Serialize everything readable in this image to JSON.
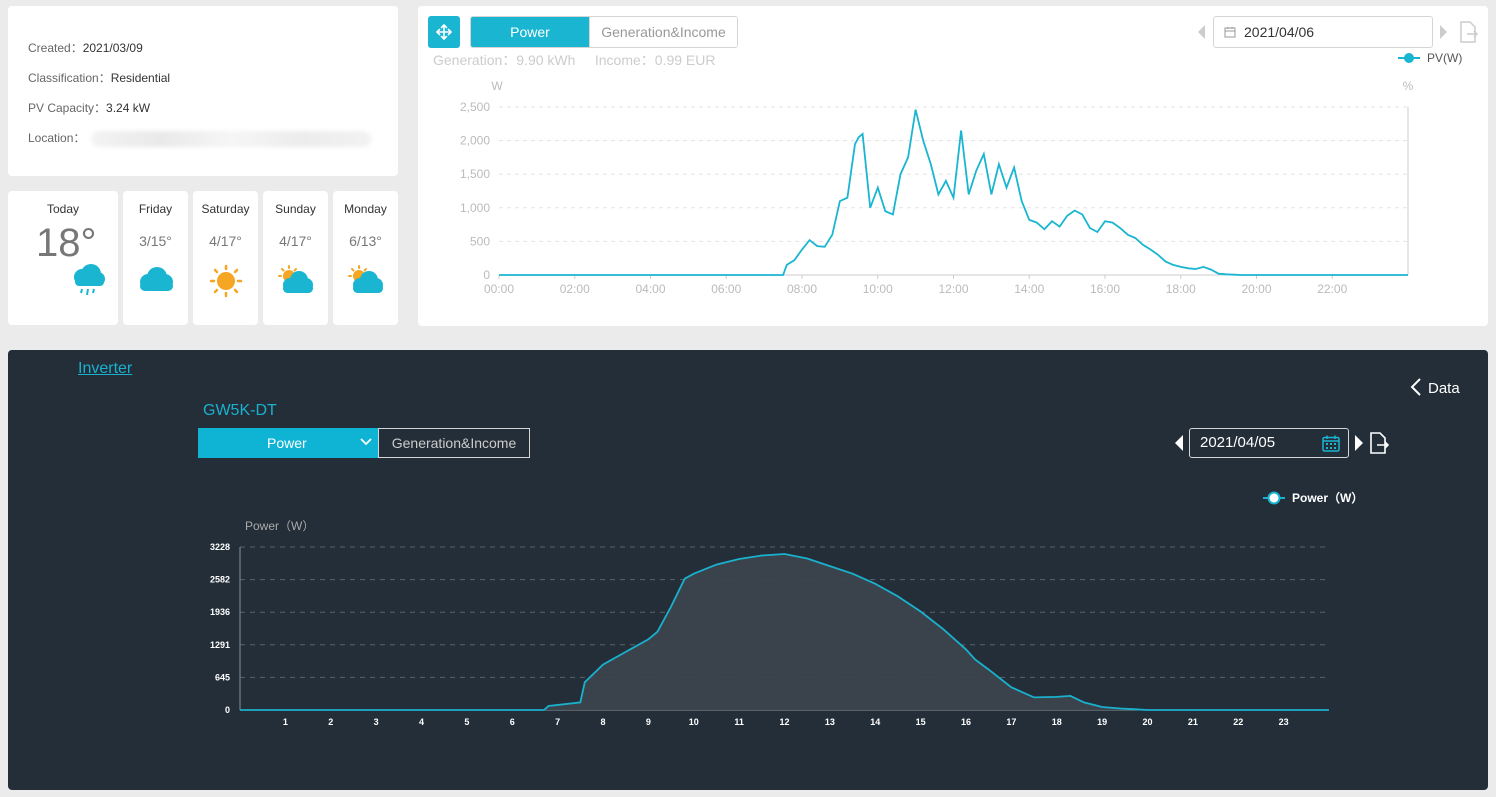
{
  "plant_info": {
    "created_label": "Created：",
    "created_value": "2021/03/09",
    "classification_label": "Classification：",
    "classification_value": "Residential",
    "capacity_label": "PV Capacity：",
    "capacity_value": "3.24 kW",
    "location_label": "Location："
  },
  "weather": [
    {
      "day": "Today",
      "temp": "18°",
      "icon": "rain-cloud-icon"
    },
    {
      "day": "Friday",
      "temp": "3/15°",
      "icon": "cloud-icon"
    },
    {
      "day": "Saturday",
      "temp": "4/17°",
      "icon": "sun-icon"
    },
    {
      "day": "Sunday",
      "temp": "4/17°",
      "icon": "partly-cloudy-icon"
    },
    {
      "day": "Monday",
      "temp": "6/13°",
      "icon": "partly-cloudy-icon"
    }
  ],
  "top_panel": {
    "tab_power": "Power",
    "tab_gen_income": "Generation&Income",
    "generation": "Generation：9.90 kWh",
    "income": "Income：0.99 EUR",
    "date": "2021/04/06",
    "accent": "#19b5d1"
  },
  "bottom_panel": {
    "inverter_link": "Inverter",
    "back_label": "Data",
    "device_name": "GW5K-DT",
    "select_power": "Power",
    "tab_gen_income": "Generation&Income",
    "date": "2021/04/05",
    "background": "#232e38",
    "accent": "#0fb4d4"
  },
  "chart_data": [
    {
      "type": "line",
      "ylabel": "W",
      "y2label": "%",
      "x_ticks": [
        "00:00",
        "02:00",
        "04:00",
        "06:00",
        "08:00",
        "10:00",
        "12:00",
        "14:00",
        "16:00",
        "18:00",
        "20:00",
        "22:00"
      ],
      "y_ticks": [
        "0",
        "500",
        "1,000",
        "1,500",
        "2,000",
        "2,500"
      ],
      "ylim": [
        0,
        2500
      ],
      "xlim": [
        0,
        24
      ],
      "grid": true,
      "legend": "top-right",
      "series": [
        {
          "name": "PV(W)",
          "color": "#19b5d1",
          "x": [
            0,
            7.5,
            7.6,
            7.8,
            8.0,
            8.2,
            8.4,
            8.6,
            8.8,
            9.0,
            9.2,
            9.4,
            9.5,
            9.6,
            9.8,
            10.0,
            10.2,
            10.4,
            10.6,
            10.8,
            11.0,
            11.2,
            11.4,
            11.6,
            11.8,
            12.0,
            12.2,
            12.4,
            12.6,
            12.8,
            13.0,
            13.2,
            13.4,
            13.6,
            13.8,
            14.0,
            14.2,
            14.4,
            14.6,
            14.8,
            15.0,
            15.2,
            15.4,
            15.6,
            15.8,
            16.0,
            16.2,
            16.4,
            16.6,
            16.8,
            17.0,
            17.2,
            17.4,
            17.6,
            17.8,
            18.0,
            18.2,
            18.4,
            18.6,
            18.8,
            19.0,
            19.2,
            19.4,
            19.6,
            19.8,
            20.0,
            24.0
          ],
          "values": [
            0,
            0,
            150,
            220,
            380,
            520,
            430,
            420,
            600,
            1100,
            1150,
            1950,
            2050,
            2100,
            1000,
            1300,
            950,
            900,
            1500,
            1750,
            2460,
            2000,
            1650,
            1200,
            1400,
            1150,
            2150,
            1200,
            1550,
            1800,
            1200,
            1650,
            1300,
            1600,
            1100,
            820,
            780,
            680,
            800,
            720,
            880,
            960,
            900,
            700,
            640,
            800,
            780,
            700,
            600,
            550,
            450,
            380,
            300,
            200,
            150,
            120,
            100,
            90,
            120,
            80,
            20,
            10,
            5,
            0,
            0,
            0,
            0
          ]
        }
      ]
    },
    {
      "type": "area",
      "ylabel": "Power（W）",
      "x_ticks": [
        "1",
        "2",
        "3",
        "4",
        "5",
        "6",
        "7",
        "8",
        "9",
        "10",
        "11",
        "12",
        "13",
        "14",
        "15",
        "16",
        "17",
        "18",
        "19",
        "20",
        "21",
        "22",
        "23"
      ],
      "y_ticks": [
        "0",
        "645",
        "1291",
        "1936",
        "2582",
        "3228"
      ],
      "ylim": [
        0,
        3228
      ],
      "xlim": [
        0,
        24
      ],
      "grid": true,
      "legend": "top-right",
      "series": [
        {
          "name": "Power（W）",
          "color": "#1ab1cf",
          "x": [
            0,
            6.7,
            6.8,
            7.5,
            7.6,
            8.0,
            8.5,
            9.0,
            9.2,
            9.5,
            9.8,
            10.0,
            10.5,
            11.0,
            11.5,
            12.0,
            12.5,
            13.0,
            13.5,
            14.0,
            14.5,
            15.0,
            15.5,
            16.0,
            16.2,
            16.5,
            17.0,
            17.5,
            18.0,
            18.3,
            18.6,
            19.0,
            19.4,
            19.7,
            20.0,
            24.0
          ],
          "values": [
            0,
            0,
            80,
            150,
            550,
            900,
            1150,
            1400,
            1550,
            2050,
            2600,
            2700,
            2880,
            2990,
            3060,
            3090,
            3000,
            2850,
            2700,
            2500,
            2250,
            1950,
            1600,
            1200,
            1000,
            800,
            450,
            250,
            260,
            280,
            150,
            60,
            30,
            15,
            0,
            0
          ]
        }
      ]
    }
  ]
}
